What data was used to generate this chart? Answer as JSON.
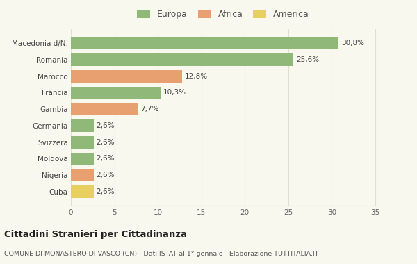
{
  "categories": [
    "Cuba",
    "Nigeria",
    "Moldova",
    "Svizzera",
    "Germania",
    "Gambia",
    "Francia",
    "Marocco",
    "Romania",
    "Macedonia d/N."
  ],
  "values": [
    2.6,
    2.6,
    2.6,
    2.6,
    2.6,
    7.7,
    10.3,
    12.8,
    25.6,
    30.8
  ],
  "colors": [
    "#e8d060",
    "#e8a070",
    "#90b878",
    "#90b878",
    "#90b878",
    "#e8a070",
    "#90b878",
    "#e8a070",
    "#90b878",
    "#90b878"
  ],
  "labels": [
    "2,6%",
    "2,6%",
    "2,6%",
    "2,6%",
    "2,6%",
    "7,7%",
    "10,3%",
    "12,8%",
    "25,6%",
    "30,8%"
  ],
  "legend_labels": [
    "Europa",
    "Africa",
    "America"
  ],
  "legend_colors": [
    "#90b878",
    "#e8a070",
    "#e8d060"
  ],
  "title": "Cittadini Stranieri per Cittadinanza",
  "subtitle": "COMUNE DI MONASTERO DI VASCO (CN) - Dati ISTAT al 1° gennaio - Elaborazione TUTTITALIA.IT",
  "xlim": [
    0,
    35
  ],
  "xticks": [
    0,
    5,
    10,
    15,
    20,
    25,
    30,
    35
  ],
  "background_color": "#f8f8ee",
  "grid_color": "#e0e0d0"
}
